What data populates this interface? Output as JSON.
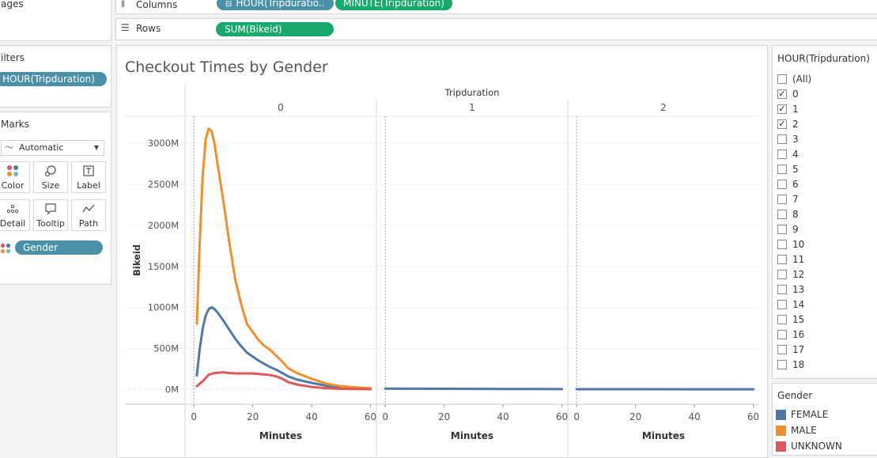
{
  "left": {
    "pages_title": "ages",
    "filters_title": "ilters",
    "filter_pill": "HOUR(Tripduration)",
    "marks_title": "Marks",
    "mark_type": "Automatic",
    "mark_buttons": [
      "Color",
      "Size",
      "Label",
      "Detail",
      "Tooltip",
      "Path"
    ],
    "gender_pill": "Gender"
  },
  "shelves": {
    "columns_label": "Columns",
    "rows_label": "Rows",
    "columns_pills": [
      "HOUR(Tripduratio..",
      "MINUTE(Tripduration)"
    ],
    "rows_pills": [
      "SUM(Bikeid)"
    ]
  },
  "filter_card": {
    "title": "HOUR(Tripduration)",
    "items": [
      {
        "label": "(All)",
        "checked": false
      },
      {
        "label": "0",
        "checked": true
      },
      {
        "label": "1",
        "checked": true
      },
      {
        "label": "2",
        "checked": true
      },
      {
        "label": "3",
        "checked": false
      },
      {
        "label": "4",
        "checked": false
      },
      {
        "label": "5",
        "checked": false
      },
      {
        "label": "6",
        "checked": false
      },
      {
        "label": "7",
        "checked": false
      },
      {
        "label": "8",
        "checked": false
      },
      {
        "label": "9",
        "checked": false
      },
      {
        "label": "10",
        "checked": false
      },
      {
        "label": "11",
        "checked": false
      },
      {
        "label": "12",
        "checked": false
      },
      {
        "label": "13",
        "checked": false
      },
      {
        "label": "14",
        "checked": false
      },
      {
        "label": "15",
        "checked": false
      },
      {
        "label": "16",
        "checked": false
      },
      {
        "label": "17",
        "checked": false
      },
      {
        "label": "18",
        "checked": false
      }
    ]
  },
  "legend": {
    "title": "Gender",
    "items": [
      {
        "label": "FEMALE",
        "color": "#4e79a7"
      },
      {
        "label": "MALE",
        "color": "#f28e2b"
      },
      {
        "label": "UNKNOWN",
        "color": "#e15759"
      }
    ]
  },
  "chart_data": {
    "type": "line",
    "title": "Checkout Times by Gender",
    "column_header": "Tripduration",
    "panels": [
      "0",
      "1",
      "2"
    ],
    "xlabel": "Minutes",
    "ylabel": "Bikeid",
    "xlim": [
      -3,
      62
    ],
    "ylim": [
      -180,
      3330
    ],
    "x_ticks": [
      0,
      20,
      40,
      60
    ],
    "y_ticks": [
      0,
      500,
      1000,
      1500,
      2000,
      2500,
      3000
    ],
    "y_tick_labels": [
      "0M",
      "500M",
      "1000M",
      "1500M",
      "2000M",
      "2500M",
      "3000M"
    ],
    "gridlines": true,
    "series": [
      {
        "name": "FEMALE",
        "color": "#4e79a7",
        "panels": [
          [
            [
              1,
              170
            ],
            [
              2,
              500
            ],
            [
              3,
              740
            ],
            [
              4,
              900
            ],
            [
              5,
              980
            ],
            [
              6,
              1000
            ],
            [
              7,
              980
            ],
            [
              8,
              940
            ],
            [
              10,
              840
            ],
            [
              12,
              730
            ],
            [
              14,
              620
            ],
            [
              16,
              530
            ],
            [
              18,
              450
            ],
            [
              20,
              400
            ],
            [
              22,
              350
            ],
            [
              24,
              310
            ],
            [
              26,
              270
            ],
            [
              28,
              240
            ],
            [
              30,
              200
            ],
            [
              32,
              160
            ],
            [
              35,
              120
            ],
            [
              40,
              80
            ],
            [
              45,
              45
            ],
            [
              50,
              25
            ],
            [
              55,
              15
            ],
            [
              60,
              10
            ]
          ],
          [
            [
              0,
              10
            ],
            [
              10,
              9
            ],
            [
              20,
              8
            ],
            [
              30,
              7
            ],
            [
              40,
              6
            ],
            [
              50,
              5
            ],
            [
              60,
              4
            ]
          ],
          [
            [
              0,
              3
            ],
            [
              20,
              3
            ],
            [
              40,
              2
            ],
            [
              60,
              2
            ]
          ]
        ]
      },
      {
        "name": "MALE",
        "color": "#f28e2b",
        "panels": [
          [
            [
              1,
              800
            ],
            [
              2,
              1800
            ],
            [
              3,
              2600
            ],
            [
              4,
              3050
            ],
            [
              5,
              3180
            ],
            [
              6,
              3150
            ],
            [
              7,
              3000
            ],
            [
              8,
              2750
            ],
            [
              10,
              2300
            ],
            [
              12,
              1800
            ],
            [
              14,
              1350
            ],
            [
              16,
              1050
            ],
            [
              18,
              800
            ],
            [
              20,
              700
            ],
            [
              22,
              600
            ],
            [
              24,
              530
            ],
            [
              26,
              480
            ],
            [
              28,
              410
            ],
            [
              30,
              340
            ],
            [
              32,
              260
            ],
            [
              35,
              200
            ],
            [
              40,
              130
            ],
            [
              45,
              70
            ],
            [
              50,
              40
            ],
            [
              55,
              25
            ],
            [
              60,
              15
            ]
          ],
          [],
          []
        ]
      },
      {
        "name": "UNKNOWN",
        "color": "#e15759",
        "panels": [
          [
            [
              1,
              40
            ],
            [
              3,
              100
            ],
            [
              5,
              180
            ],
            [
              7,
              200
            ],
            [
              10,
              210
            ],
            [
              12,
              200
            ],
            [
              15,
              195
            ],
            [
              20,
              195
            ],
            [
              25,
              180
            ],
            [
              28,
              160
            ],
            [
              30,
              130
            ],
            [
              32,
              90
            ],
            [
              35,
              60
            ],
            [
              40,
              30
            ],
            [
              45,
              15
            ],
            [
              50,
              8
            ],
            [
              55,
              5
            ],
            [
              60,
              3
            ]
          ],
          [],
          []
        ]
      }
    ]
  }
}
